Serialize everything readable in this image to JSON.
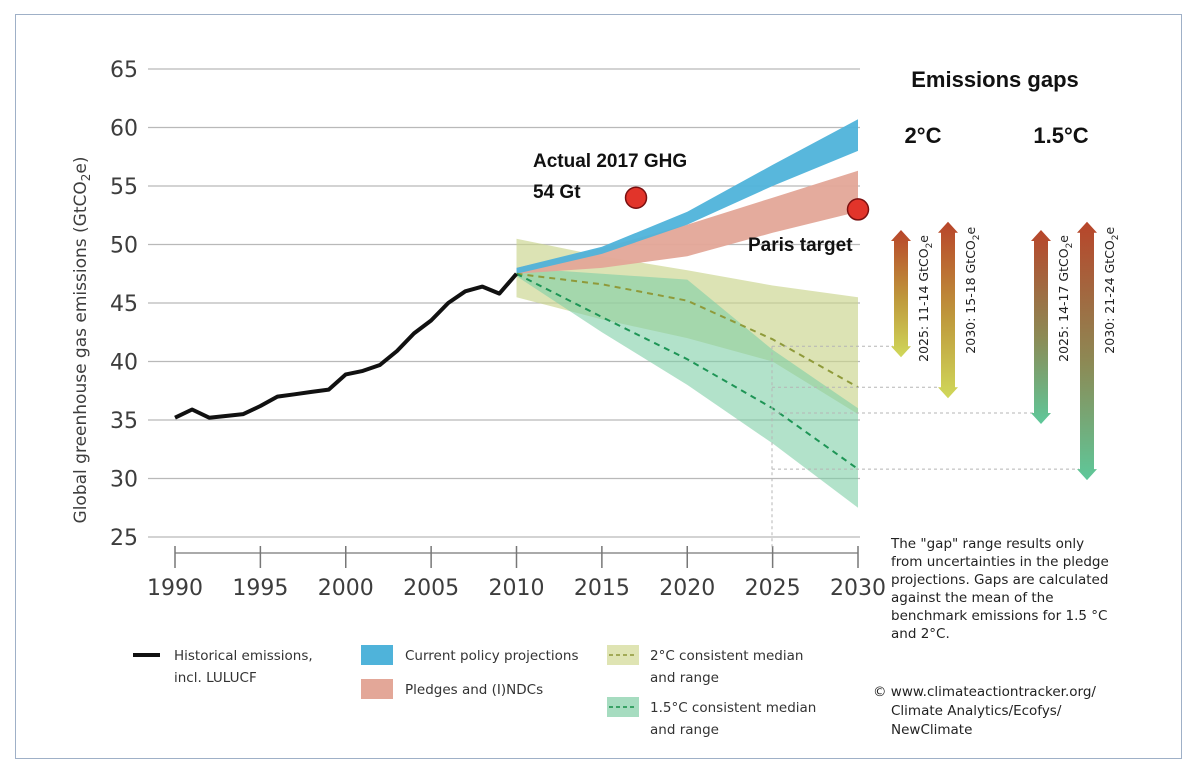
{
  "chart_data": {
    "type": "line",
    "ylabel_parts": {
      "pre": "Global greenhouse gas emissions (GtCO",
      "sub": "2",
      "post": "e)"
    },
    "xlim": [
      1990,
      2030
    ],
    "ylim": [
      25,
      65
    ],
    "x_ticks": [
      "1990",
      "1995",
      "2000",
      "2005",
      "2010",
      "2015",
      "2020",
      "2025",
      "2030"
    ],
    "y_ticks": [
      "65",
      "60",
      "55",
      "50",
      "45",
      "40",
      "35",
      "30",
      "25"
    ],
    "grid": true,
    "series": [
      {
        "name": "Historical emissions, incl. LULUCF",
        "type": "line",
        "color": "#111111",
        "x": [
          1990,
          1991,
          1992,
          1994,
          1995,
          1996,
          1997,
          1998,
          1999,
          2000,
          2001,
          2002,
          2003,
          2004,
          2005,
          2006,
          2007,
          2008,
          2009,
          2010
        ],
        "y": [
          35.2,
          35.9,
          35.2,
          35.5,
          36.2,
          37.0,
          37.2,
          37.4,
          37.6,
          38.9,
          39.2,
          39.7,
          40.9,
          42.4,
          43.5,
          45.0,
          46.0,
          46.4,
          45.8,
          47.5
        ]
      },
      {
        "name": "Current policy projections",
        "type": "range",
        "color": "#4fb3da",
        "x": [
          2010,
          2015,
          2020,
          2025,
          2030
        ],
        "lower": [
          47.5,
          49.2,
          51.7,
          55.0,
          58.0
        ],
        "upper": [
          48.0,
          49.8,
          52.8,
          56.8,
          60.7
        ]
      },
      {
        "name": "Pledges and (I)NDCs",
        "type": "range",
        "color": "#e3a798",
        "x": [
          2010,
          2015,
          2020,
          2025,
          2030
        ],
        "lower": [
          47.5,
          48.0,
          49.0,
          51.0,
          52.8
        ],
        "upper": [
          48.0,
          49.7,
          51.7,
          54.0,
          56.3
        ]
      },
      {
        "name": "2°C consistent median and range",
        "type": "range",
        "color": "#c9d48c",
        "x": [
          2010,
          2015,
          2020,
          2025,
          2030
        ],
        "lower": [
          45.5,
          43.6,
          42.0,
          40.0,
          35.5
        ],
        "upper": [
          50.5,
          49.0,
          47.8,
          46.5,
          45.5
        ],
        "median": [
          47.5,
          46.6,
          45.2,
          41.9,
          37.8
        ]
      },
      {
        "name": "1.5°C consistent median and range",
        "type": "range",
        "color": "#7fcfa6",
        "x": [
          2010,
          2015,
          2020,
          2025,
          2030
        ],
        "lower": [
          47.3,
          42.5,
          38.0,
          33.0,
          27.5
        ],
        "upper": [
          48.0,
          47.5,
          47.0,
          41.0,
          36.0
        ],
        "median": [
          47.5,
          43.8,
          40.2,
          36.0,
          30.8
        ]
      }
    ],
    "points": [
      {
        "x": 2017,
        "y": 54,
        "color": "#e2342a"
      },
      {
        "x": 2030,
        "y": 53,
        "color": "#e2342a"
      }
    ],
    "annotations": {
      "actual_line1": "Actual 2017 GHG",
      "actual_line2": "54 Gt",
      "paris": "Paris target"
    },
    "gaps": {
      "title": "Emissions gaps",
      "col_2c": "2°C",
      "col_15c": "1.5°C",
      "arrows": [
        {
          "pre": "2025: 11-14 GtCO",
          "sub": "2",
          "post": "e",
          "from": 41.3,
          "to": 50.3,
          "color_bottom": "#d0d85a"
        },
        {
          "pre": "2030: 15-18 GtCO",
          "sub": "2",
          "post": "e",
          "from": 37.8,
          "to": 51.0,
          "color_bottom": "#d0d85a"
        },
        {
          "pre": "2025: 14-17 GtCO",
          "sub": "2",
          "post": "e",
          "from": 35.6,
          "to": 50.3,
          "color_bottom": "#5ec89a"
        },
        {
          "pre": "2030: 21-24 GtCO",
          "sub": "2",
          "post": "e",
          "from": 30.8,
          "to": 51.0,
          "color_bottom": "#5ec89a"
        }
      ]
    },
    "legend": {
      "historical_l1": "Historical emissions,",
      "historical_l2": "incl. LULUCF",
      "current": "Current policy projections",
      "pledges": "Pledges and (I)NDCs",
      "twoc_l1": "2°C consistent median",
      "twoc_l2": "and range",
      "onefive_l1": "1.5°C consistent median",
      "onefive_l2": "and range"
    },
    "note_lines": [
      "The \"gap\" range results only",
      "from uncertainties in the pledge",
      "projections. Gaps are calculated",
      "against the mean of the",
      "benchmark emissions for 1.5 °C",
      "and 2°C."
    ],
    "source_lines": [
      "© www.climateactiontracker.org/",
      "Climate Analytics/Ecofys/",
      "NewClimate"
    ]
  }
}
